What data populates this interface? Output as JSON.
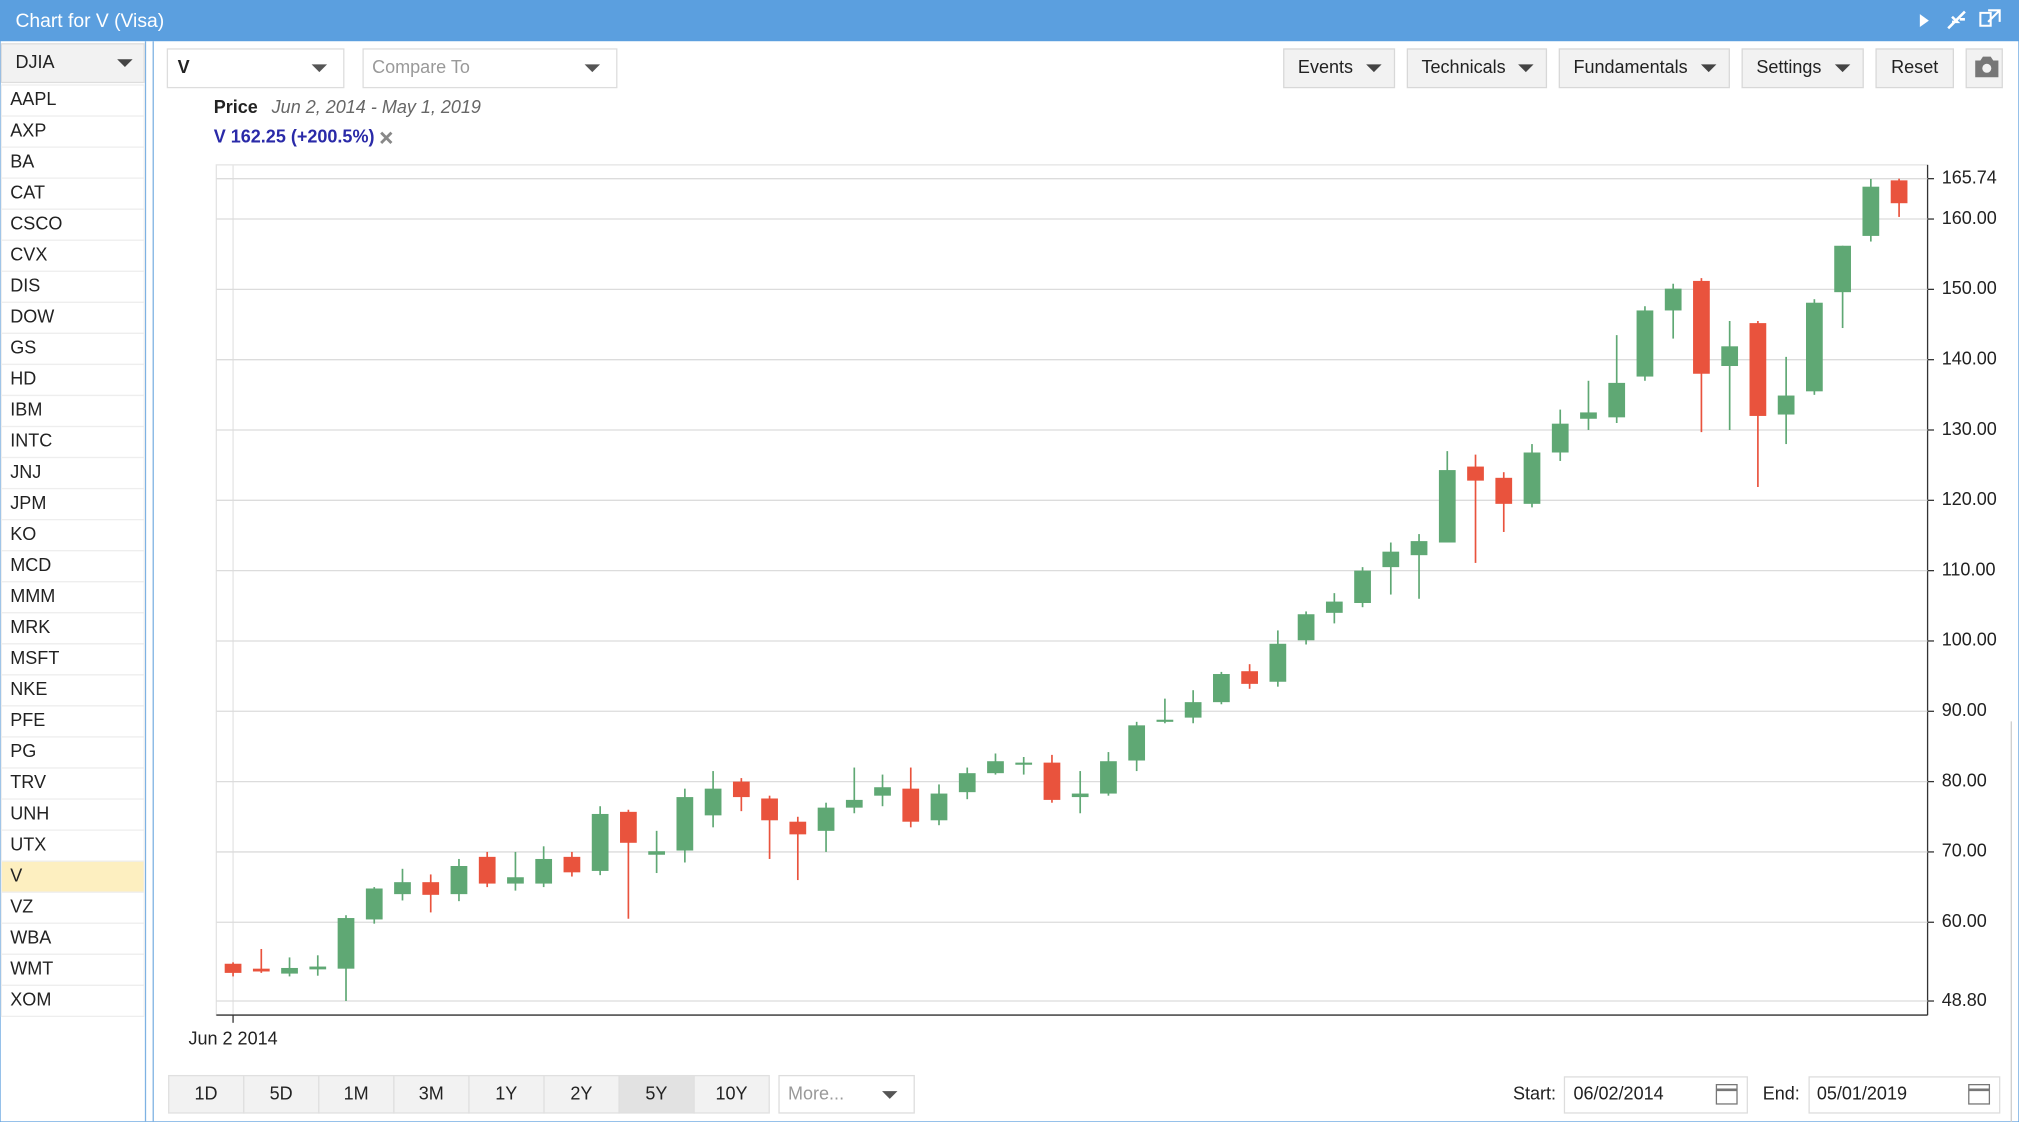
{
  "ui": {
    "window_title": "Chart for V (Visa)",
    "index_select": "DJIA",
    "symbols": [
      "AAPL",
      "AXP",
      "BA",
      "CAT",
      "CSCO",
      "CVX",
      "DIS",
      "DOW",
      "GS",
      "HD",
      "IBM",
      "INTC",
      "JNJ",
      "JPM",
      "KO",
      "MCD",
      "MMM",
      "MRK",
      "MSFT",
      "NKE",
      "PFE",
      "PG",
      "TRV",
      "UNH",
      "UTX",
      "V",
      "VZ",
      "WBA",
      "WMT",
      "XOM"
    ],
    "symbol_input": "V",
    "compare_placeholder": "Compare To",
    "toolbar_buttons": [
      "Events",
      "Technicals",
      "Fundamentals",
      "Settings"
    ],
    "reset_button": "Reset",
    "range_buttons": [
      "1D",
      "5D",
      "1M",
      "3M",
      "1Y",
      "2Y",
      "5Y",
      "10Y"
    ],
    "more_select": "More...",
    "start_label": "Start:",
    "start_date": "06/02/2014",
    "end_label": "End:",
    "end_date": "05/01/2019"
  },
  "chart_data": {
    "type": "candlestick",
    "title": "Price",
    "subtitle": "Jun 2, 2014 - May 1, 2019",
    "legend_label": "V 162.25 (+200.5%)",
    "legend_color": "#2a2aa8",
    "up_color": "#5fa874",
    "down_color": "#e9533d",
    "categories": [
      "Jun 2 2014",
      null,
      null,
      null,
      null,
      null,
      null,
      null,
      null,
      null,
      null,
      null,
      null,
      null,
      null,
      null,
      null,
      null,
      null,
      null,
      null,
      null,
      null,
      null,
      null,
      null,
      null,
      null,
      null,
      null,
      null,
      null,
      null,
      null,
      null,
      null,
      null,
      null,
      null,
      null,
      null,
      null,
      null,
      null,
      null,
      null,
      null,
      null,
      null,
      null,
      null,
      null,
      null,
      null,
      null,
      null,
      null,
      null,
      null,
      null
    ],
    "open": [
      54.1,
      53.4,
      52.7,
      53.3,
      53.4,
      60.4,
      64.0,
      65.7,
      64.0,
      69.3,
      65.5,
      65.5,
      69.3,
      67.3,
      75.7,
      69.6,
      70.2,
      75.2,
      80.0,
      77.6,
      74.3,
      73.0,
      76.3,
      78.0,
      79.0,
      74.5,
      78.5,
      81.2,
      82.4,
      82.7,
      77.8,
      78.3,
      83.0,
      88.5,
      89.1,
      91.3,
      95.7,
      94.2,
      100.1,
      104.0,
      105.4,
      110.5,
      112.2,
      114.0,
      124.8,
      123.2,
      119.5,
      126.8,
      131.6,
      131.8,
      137.6,
      147.0,
      151.2,
      139.1,
      145.2,
      132.2,
      135.5,
      149.6,
      157.6,
      165.5
    ],
    "high": [
      54.3,
      56.2,
      55.0,
      55.3,
      61.0,
      65.0,
      67.6,
      66.8,
      69.0,
      70.0,
      70.0,
      70.8,
      70.0,
      76.5,
      76.0,
      73.0,
      79.0,
      81.5,
      80.5,
      78.0,
      75.0,
      77.0,
      82.0,
      81.0,
      82.0,
      79.6,
      82.0,
      84.0,
      83.5,
      83.8,
      81.5,
      84.2,
      88.5,
      91.8,
      93.0,
      95.6,
      96.7,
      101.5,
      104.2,
      106.8,
      110.5,
      114.0,
      115.2,
      127.0,
      126.5,
      124.0,
      128.0,
      132.9,
      137.0,
      143.5,
      147.6,
      150.8,
      151.6,
      145.5,
      145.5,
      140.4,
      148.6,
      156.2,
      165.7,
      165.74
    ],
    "low": [
      52.3,
      52.8,
      52.3,
      52.4,
      48.8,
      59.8,
      63.1,
      61.4,
      63.0,
      65.0,
      64.5,
      65.0,
      66.5,
      66.7,
      60.5,
      67.0,
      68.5,
      73.5,
      75.8,
      69.0,
      66.0,
      70.0,
      75.5,
      76.5,
      73.5,
      73.8,
      77.5,
      81.0,
      81.0,
      77.0,
      75.5,
      78.0,
      81.5,
      88.3,
      88.3,
      91.0,
      93.2,
      93.5,
      99.5,
      102.5,
      104.8,
      106.6,
      106.0,
      114.0,
      111.1,
      115.5,
      119.0,
      125.6,
      130.0,
      131.0,
      137.0,
      143.0,
      129.7,
      130.0,
      121.9,
      128.0,
      135.0,
      144.5,
      156.8,
      160.3
    ],
    "close": [
      52.8,
      53.0,
      53.5,
      53.7,
      60.6,
      64.8,
      65.7,
      63.9,
      68.0,
      65.5,
      66.4,
      69.0,
      67.1,
      75.4,
      71.3,
      70.1,
      77.8,
      79.0,
      77.8,
      74.5,
      72.5,
      76.3,
      77.4,
      79.2,
      74.3,
      78.3,
      81.2,
      82.9,
      82.7,
      77.4,
      78.3,
      82.9,
      88.0,
      88.8,
      91.3,
      95.3,
      93.9,
      99.6,
      103.8,
      105.6,
      110.0,
      112.7,
      114.2,
      124.3,
      122.8,
      119.5,
      126.8,
      130.9,
      132.5,
      136.7,
      147.0,
      150.1,
      138.0,
      141.9,
      132.0,
      134.9,
      148.1,
      156.2,
      164.6,
      162.25
    ],
    "ylim": [
      46.8,
      167.7
    ],
    "yticks": [
      {
        "value": 48.8,
        "label": "48.80"
      },
      {
        "value": 60,
        "label": "60.00"
      },
      {
        "value": 70,
        "label": "70.00"
      },
      {
        "value": 80,
        "label": "80.00"
      },
      {
        "value": 90,
        "label": "90.00"
      },
      {
        "value": 100,
        "label": "100.00"
      },
      {
        "value": 110,
        "label": "110.00"
      },
      {
        "value": 120,
        "label": "120.00"
      },
      {
        "value": 130,
        "label": "130.00"
      },
      {
        "value": 140,
        "label": "140.00"
      },
      {
        "value": 150,
        "label": "150.00"
      },
      {
        "value": 160,
        "label": "160.00"
      },
      {
        "value": 165.74,
        "label": "165.74"
      }
    ],
    "grid": true
  }
}
